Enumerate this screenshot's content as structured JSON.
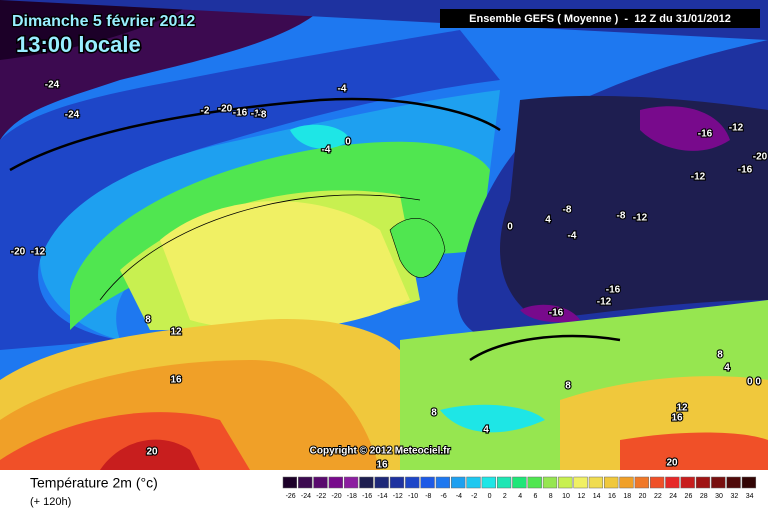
{
  "header": {
    "date": "Dimanche 5 février 2012",
    "time": "13:00 locale",
    "run": "Ensemble GEFS ( Moyenne )  -  12 Z du 31/01/2012"
  },
  "copyright": "Copyright © 2012 Meteociel.fr",
  "footer": {
    "variable": "Température 2m (°c)",
    "lead": "(+ 120h)"
  },
  "contour_labels": [
    "-24",
    "-24",
    "-2",
    "-20",
    "-16",
    "-12",
    "-8",
    "-4",
    "-4",
    "0",
    "-20",
    "-12",
    "8",
    "12",
    "16",
    "20",
    "16",
    "0",
    "4",
    "-4",
    "-8",
    "-8",
    "-12",
    "-12",
    "-16",
    "-12",
    "-16",
    "-12",
    "-16",
    "-20",
    "-16",
    "8",
    "4",
    "0 0",
    "8",
    "8",
    "4",
    "12",
    "16",
    "20"
  ],
  "legend": [
    {
      "label": "-26",
      "color": "#1c0028"
    },
    {
      "label": "-24",
      "color": "#3c0a50"
    },
    {
      "label": "-22",
      "color": "#5a0a6e"
    },
    {
      "label": "-20",
      "color": "#780a8c"
    },
    {
      "label": "-18",
      "color": "#8c1ea0"
    },
    {
      "label": "-16",
      "color": "#1e1e50"
    },
    {
      "label": "-14",
      "color": "#1e2878"
    },
    {
      "label": "-12",
      "color": "#1e32a0"
    },
    {
      "label": "-10",
      "color": "#1e46c8"
    },
    {
      "label": "-8",
      "color": "#1e5ae6"
    },
    {
      "label": "-6",
      "color": "#1e78f0"
    },
    {
      "label": "-4",
      "color": "#1ea0f0"
    },
    {
      "label": "-2",
      "color": "#1ec8f0"
    },
    {
      "label": "0",
      "color": "#1ee6e6"
    },
    {
      "label": "2",
      "color": "#1ee6b4"
    },
    {
      "label": "4",
      "color": "#1ee678"
    },
    {
      "label": "6",
      "color": "#50e650"
    },
    {
      "label": "8",
      "color": "#96e650"
    },
    {
      "label": "10",
      "color": "#c8f050"
    },
    {
      "label": "12",
      "color": "#f0f064"
    },
    {
      "label": "14",
      "color": "#f0dc50"
    },
    {
      "label": "16",
      "color": "#f0c83c"
    },
    {
      "label": "18",
      "color": "#f0a028"
    },
    {
      "label": "20",
      "color": "#f07828"
    },
    {
      "label": "22",
      "color": "#f05028"
    },
    {
      "label": "24",
      "color": "#e62828"
    },
    {
      "label": "26",
      "color": "#c81e1e"
    },
    {
      "label": "28",
      "color": "#a01414"
    },
    {
      "label": "30",
      "color": "#781010"
    },
    {
      "label": "32",
      "color": "#500a0a"
    },
    {
      "label": "34",
      "color": "#320505"
    }
  ]
}
